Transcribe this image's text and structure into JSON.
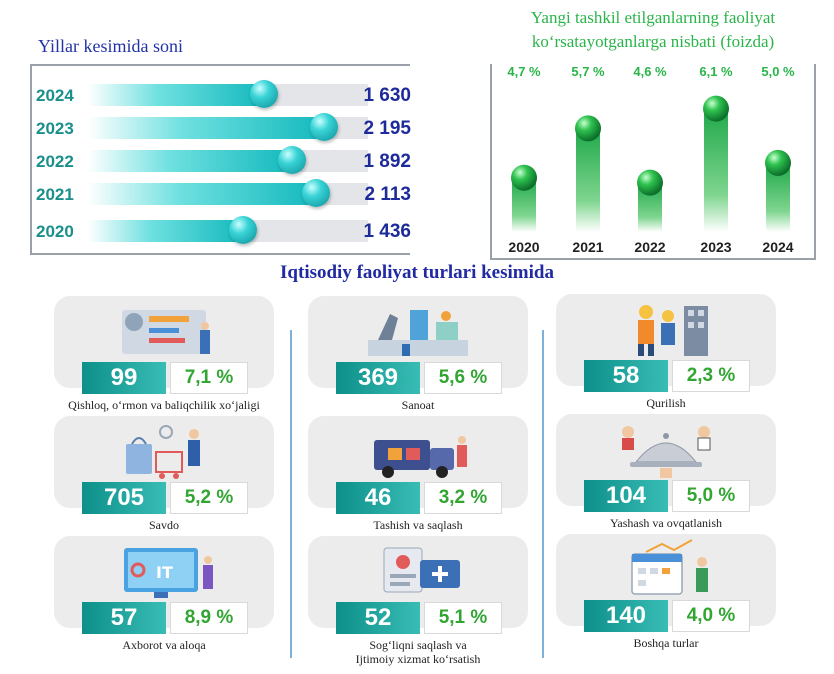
{
  "years": {
    "title": "Yillar kesimida soni",
    "colors": {
      "label": "#1a8f8c",
      "value": "#1d2a9a",
      "bar": "#14b9bd"
    },
    "rows": [
      {
        "year": "2024",
        "value": 1630,
        "display": "1 630"
      },
      {
        "year": "2023",
        "value": 2195,
        "display": "2 195"
      },
      {
        "year": "2022",
        "value": 1892,
        "display": "1 892"
      },
      {
        "year": "2021",
        "value": 2113,
        "display": "2 113"
      },
      {
        "year": "2020",
        "value": 1436,
        "display": "1 436"
      }
    ]
  },
  "ratio": {
    "title_line1": "Yangi tashkil etilganlarning faoliyat",
    "title_line2": "ko‘rsatayotganlarga nisbati (foizda)",
    "color": "#2ab54a"
  },
  "sectors": {
    "title": "Iqtisodiy faoliyat turlari kesimida",
    "items": [
      {
        "name": "Qishloq, o‘rmon va baliqchilik xo‘jaligi",
        "count": "99",
        "share": "7,1 %",
        "icon": "farm-tech-icon"
      },
      {
        "name": "Sanoat",
        "count": "369",
        "share": "5,6 %",
        "icon": "factory-icon"
      },
      {
        "name": "Qurilish",
        "count": "58",
        "share": "2,3 %",
        "icon": "construction-icon"
      },
      {
        "name": "Savdo",
        "count": "705",
        "share": "5,2 %",
        "icon": "shopping-icon"
      },
      {
        "name": "Tashish va saqlash",
        "count": "46",
        "share": "3,2 %",
        "icon": "truck-icon"
      },
      {
        "name": "Yashash va ovqatlanish",
        "count": "104",
        "share": "5,0 %",
        "icon": "cloche-icon"
      },
      {
        "name": "Axborot va aloqa",
        "count": "57",
        "share": "8,9 %",
        "icon": "it-monitor-icon"
      },
      {
        "name_line1": "Sog‘liqni saqlash va",
        "name_line2": "Ijtimoiy xizmat ko‘rsatish",
        "count": "52",
        "share": "5,1 %",
        "icon": "health-card-icon"
      },
      {
        "name": "Boshqa turlar",
        "count": "140",
        "share": "4,0 %",
        "icon": "calendar-chart-icon"
      }
    ]
  },
  "chart_data": [
    {
      "type": "bar",
      "title": "Yillar kesimida soni",
      "categories": [
        "2024",
        "2023",
        "2022",
        "2021",
        "2020"
      ],
      "values": [
        1630,
        2195,
        1892,
        2113,
        1436
      ],
      "xlabel": "",
      "ylabel": "",
      "orientation": "horizontal"
    },
    {
      "type": "bar",
      "title": "Yangi tashkil etilganlarning faoliyat ko‘rsatayotganlarga nisbati (foizda)",
      "categories": [
        "2020",
        "2021",
        "2022",
        "2023",
        "2024"
      ],
      "values": [
        4.7,
        5.7,
        4.6,
        6.1,
        5.0
      ],
      "labels": [
        "4,7 %",
        "5,7 %",
        "4,6 %",
        "6,1 %",
        "5,0 %"
      ],
      "xlabel": "",
      "ylabel": "",
      "ylim": [
        3.6,
        6.6
      ]
    }
  ]
}
